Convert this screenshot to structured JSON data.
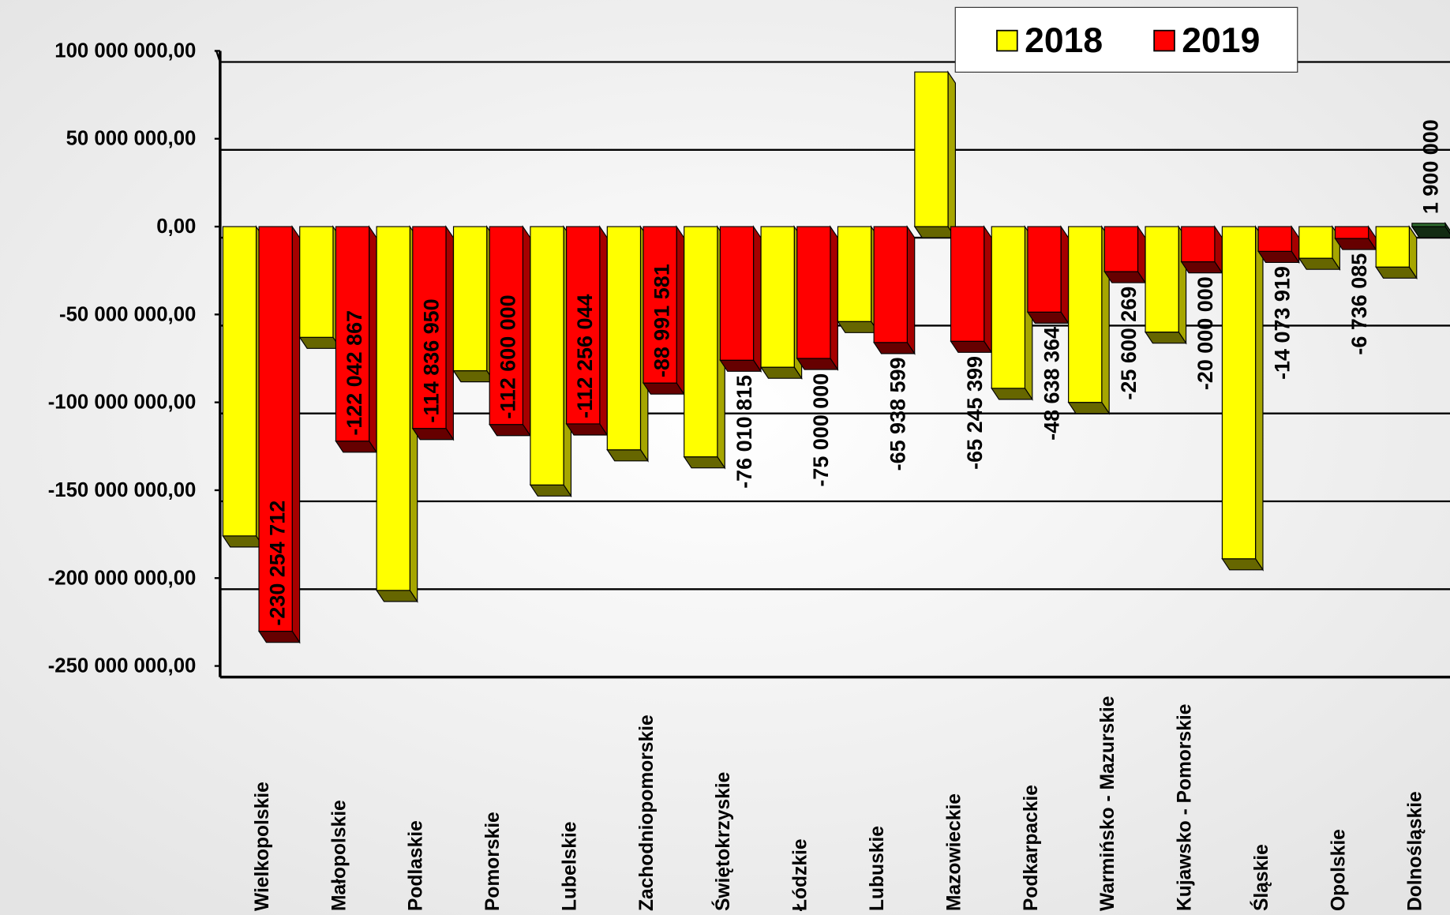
{
  "chart_data": {
    "type": "bar3d",
    "categories": [
      "Wielkopolskie",
      "Małopolskie",
      "Podlaskie",
      "Pomorskie",
      "Lubelskie",
      "Zachodniopomorskie",
      "Świętokrzyskie",
      "Łódzkie",
      "Lubuskie",
      "Mazowieckie",
      "Podkarpackie",
      "Warmińsko - Mazurskie",
      "Kujawsko - Pomorskie",
      "Śląskie",
      "Opolskie",
      "Dolnośląskie"
    ],
    "series": [
      {
        "name": "2018",
        "color": "#ffff00",
        "values": [
          -176000000,
          -63000000,
          -207000000,
          -82000000,
          -147000000,
          -127000000,
          -131000000,
          -80000000,
          -54000000,
          88000000,
          -92000000,
          -100000000,
          -60000000,
          -189000000,
          -18000000,
          -23000000
        ]
      },
      {
        "name": "2019",
        "color": "#ff0000",
        "positive_color": "#2e6b2e",
        "values": [
          -230254712,
          -122042867,
          -114836950,
          -112600000,
          -112256044,
          -88991581,
          -76010815,
          -75000000,
          -65938599,
          -65245399,
          -48638364,
          -25600269,
          -20000000,
          -14073919,
          -6736085,
          1900000
        ],
        "value_labels": [
          "-230 254 712",
          "-122 042 867",
          "-114 836 950",
          "-112 600 000",
          "-112 256 044",
          "-88 991 581",
          "-76 010 815",
          "-75 000 000",
          "-65 938 599",
          "-65 245 399",
          "-48 638 364",
          "-25 600 269",
          "-20 000 000",
          "-14 073 919",
          "-6 736 085",
          "1 900 000"
        ]
      }
    ],
    "highlight": {
      "category": "Kujawsko - Pomorskie",
      "color": "#0000cc"
    },
    "ylim": [
      -250000000,
      100000000
    ],
    "yticks": [
      {
        "value": 100000000,
        "label": "100 000 000,00"
      },
      {
        "value": 50000000,
        "label": "50 000 000,00"
      },
      {
        "value": 0,
        "label": "0,00"
      },
      {
        "value": -50000000,
        "label": "-50 000 000,00"
      },
      {
        "value": -100000000,
        "label": "-100 000 000,00"
      },
      {
        "value": -150000000,
        "label": "-150 000 000,00"
      },
      {
        "value": -200000000,
        "label": "-200 000 000,00"
      },
      {
        "value": -250000000,
        "label": "-250 000 000,00"
      }
    ],
    "grid": true,
    "legend": "top-right"
  }
}
